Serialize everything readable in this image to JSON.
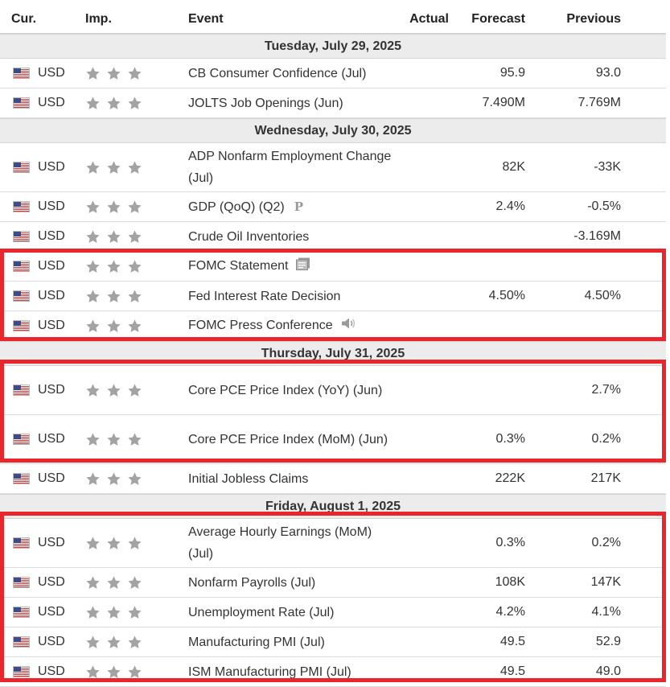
{
  "colors": {
    "highlight": "#e8262c",
    "star": "#a3a3a3",
    "day_bg": "#ececec"
  },
  "header": {
    "cur": "Cur.",
    "imp": "Imp.",
    "event": "Event",
    "actual": "Actual",
    "forecast": "Forecast",
    "previous": "Previous"
  },
  "days": [
    {
      "label": "Tuesday, July 29, 2025",
      "events": [
        {
          "cur": "USD",
          "stars": 3,
          "event": "CB Consumer Confidence (Jul)",
          "actual": "",
          "forecast": "95.9",
          "previous": "93.0",
          "tall": false,
          "icon": ""
        },
        {
          "cur": "USD",
          "stars": 3,
          "event": "JOLTS Job Openings (Jun)",
          "actual": "",
          "forecast": "7.490M",
          "previous": "7.769M",
          "tall": false,
          "icon": ""
        }
      ]
    },
    {
      "label": "Wednesday, July 30, 2025",
      "events": [
        {
          "cur": "USD",
          "stars": 3,
          "event": "ADP Nonfarm Employment Change (Jul)",
          "actual": "",
          "forecast": "82K",
          "previous": "-33K",
          "tall": true,
          "icon": ""
        },
        {
          "cur": "USD",
          "stars": 3,
          "event": "GDP (QoQ) (Q2)",
          "actual": "",
          "forecast": "2.4%",
          "previous": "-0.5%",
          "tall": false,
          "icon": "preliminary-icon"
        },
        {
          "cur": "USD",
          "stars": 3,
          "event": "Crude Oil Inventories",
          "actual": "",
          "forecast": "",
          "previous": "-3.169M",
          "tall": false,
          "icon": ""
        },
        {
          "cur": "USD",
          "stars": 3,
          "event": "FOMC Statement",
          "actual": "",
          "forecast": "",
          "previous": "",
          "tall": false,
          "icon": "document-icon"
        },
        {
          "cur": "USD",
          "stars": 3,
          "event": "Fed Interest Rate Decision",
          "actual": "",
          "forecast": "4.50%",
          "previous": "4.50%",
          "tall": false,
          "icon": ""
        },
        {
          "cur": "USD",
          "stars": 3,
          "event": "FOMC Press Conference",
          "actual": "",
          "forecast": "",
          "previous": "",
          "tall": false,
          "icon": "speaker-icon"
        }
      ]
    },
    {
      "label": "Thursday, July 31, 2025",
      "events": [
        {
          "cur": "USD",
          "stars": 3,
          "event": "Core PCE Price Index (YoY) (Jun)",
          "actual": "",
          "forecast": "",
          "previous": "2.7%",
          "tall": true,
          "icon": ""
        },
        {
          "cur": "USD",
          "stars": 3,
          "event": "Core PCE Price Index (MoM) (Jun)",
          "actual": "",
          "forecast": "0.3%",
          "previous": "0.2%",
          "tall": true,
          "icon": ""
        },
        {
          "cur": "USD",
          "stars": 3,
          "event": "Initial Jobless Claims",
          "actual": "",
          "forecast": "222K",
          "previous": "217K",
          "tall": false,
          "icon": ""
        }
      ]
    },
    {
      "label": "Friday, August 1, 2025",
      "events": [
        {
          "cur": "USD",
          "stars": 3,
          "event": "Average Hourly Earnings (MoM) (Jul)",
          "actual": "",
          "forecast": "0.3%",
          "previous": "0.2%",
          "tall": true,
          "icon": ""
        },
        {
          "cur": "USD",
          "stars": 3,
          "event": "Nonfarm Payrolls (Jul)",
          "actual": "",
          "forecast": "108K",
          "previous": "147K",
          "tall": false,
          "icon": ""
        },
        {
          "cur": "USD",
          "stars": 3,
          "event": "Unemployment Rate (Jul)",
          "actual": "",
          "forecast": "4.2%",
          "previous": "4.1%",
          "tall": false,
          "icon": ""
        },
        {
          "cur": "USD",
          "stars": 3,
          "event": "Manufacturing PMI (Jul)",
          "actual": "",
          "forecast": "49.5",
          "previous": "52.9",
          "tall": false,
          "icon": ""
        },
        {
          "cur": "USD",
          "stars": 3,
          "event": "ISM Manufacturing PMI (Jul)",
          "actual": "",
          "forecast": "49.5",
          "previous": "49.0",
          "tall": false,
          "icon": ""
        }
      ]
    }
  ]
}
